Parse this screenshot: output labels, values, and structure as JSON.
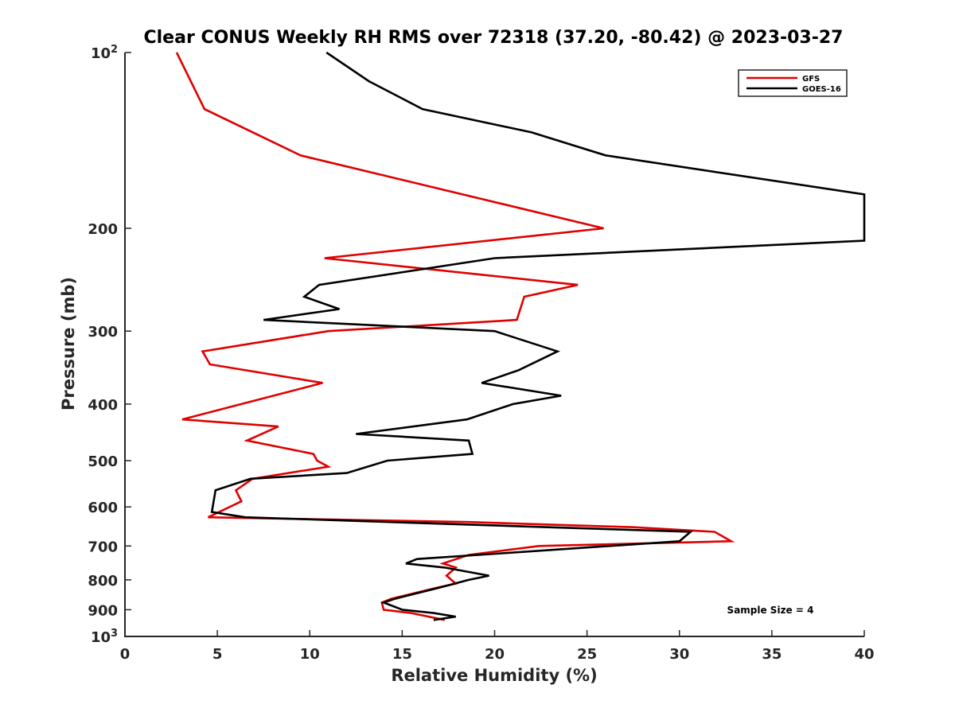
{
  "chart_data": {
    "type": "line",
    "title": "Clear CONUS Weekly RH RMS over 72318 (37.20, -80.42) @ 2023-03-27",
    "xlabel": "Relative Humidity (%)",
    "ylabel": "Pressure (mb)",
    "xlim": [
      0,
      40
    ],
    "ylim": [
      100,
      1000
    ],
    "y_scale": "log",
    "y_reversed": true,
    "grid": false,
    "legend_position": "top-right",
    "x_ticks": [
      "0",
      "5",
      "10",
      "15",
      "20",
      "25",
      "30",
      "35",
      "40"
    ],
    "y_ticks": [
      {
        "base": "10",
        "sup": "2",
        "text": "",
        "value": 100
      },
      {
        "base": "",
        "sup": "",
        "text": "200",
        "value": 200
      },
      {
        "base": "",
        "sup": "",
        "text": "300",
        "value": 300
      },
      {
        "base": "",
        "sup": "",
        "text": "400",
        "value": 400
      },
      {
        "base": "",
        "sup": "",
        "text": "500",
        "value": 500
      },
      {
        "base": "",
        "sup": "",
        "text": "600",
        "value": 600
      },
      {
        "base": "",
        "sup": "",
        "text": "700",
        "value": 700
      },
      {
        "base": "",
        "sup": "",
        "text": "800",
        "value": 800
      },
      {
        "base": "",
        "sup": "",
        "text": "900",
        "value": 900
      },
      {
        "base": "10",
        "sup": "3",
        "text": "",
        "value": 1000
      }
    ],
    "annotation": "Sample Size = 4",
    "series": [
      {
        "name": "GFS",
        "color": "#e00000",
        "points": [
          [
            2.8,
            100
          ],
          [
            4.3,
            125
          ],
          [
            9.5,
            150
          ],
          [
            25.9,
            200
          ],
          [
            10.8,
            225
          ],
          [
            24.5,
            250
          ],
          [
            21.6,
            262
          ],
          [
            21.2,
            287
          ],
          [
            11.0,
            300
          ],
          [
            4.2,
            325
          ],
          [
            4.6,
            342
          ],
          [
            10.7,
            368
          ],
          [
            3.1,
            425
          ],
          [
            8.3,
            437
          ],
          [
            6.6,
            462
          ],
          [
            10.2,
            487
          ],
          [
            10.4,
            500
          ],
          [
            11.0,
            512
          ],
          [
            6.9,
            537
          ],
          [
            6.0,
            562
          ],
          [
            6.3,
            587
          ],
          [
            4.5,
            625
          ],
          [
            18.6,
            637
          ],
          [
            27.5,
            650
          ],
          [
            31.9,
            662
          ],
          [
            32.8,
            687
          ],
          [
            22.4,
            700
          ],
          [
            18.6,
            725
          ],
          [
            17.2,
            750
          ],
          [
            17.9,
            762
          ],
          [
            17.4,
            787
          ],
          [
            17.9,
            812
          ],
          [
            16.9,
            825
          ],
          [
            14.4,
            862
          ],
          [
            13.9,
            875
          ],
          [
            14.0,
            900
          ],
          [
            15.5,
            912
          ],
          [
            17.3,
            937
          ]
        ]
      },
      {
        "name": "GOES-16",
        "color": "#000000",
        "points": [
          [
            10.9,
            100
          ],
          [
            13.2,
            112
          ],
          [
            16.1,
            125
          ],
          [
            22.0,
            137
          ],
          [
            26.0,
            150
          ],
          [
            40.0,
            175
          ],
          [
            40.0,
            210
          ],
          [
            20.0,
            225
          ],
          [
            10.5,
            250
          ],
          [
            9.7,
            262
          ],
          [
            11.6,
            275
          ],
          [
            7.5,
            287
          ],
          [
            20.0,
            300
          ],
          [
            23.4,
            325
          ],
          [
            21.3,
            350
          ],
          [
            19.3,
            368
          ],
          [
            23.6,
            387
          ],
          [
            21.0,
            400
          ],
          [
            18.5,
            425
          ],
          [
            12.5,
            450
          ],
          [
            18.6,
            462
          ],
          [
            18.8,
            487
          ],
          [
            14.2,
            500
          ],
          [
            12.0,
            525
          ],
          [
            6.8,
            537
          ],
          [
            4.9,
            562
          ],
          [
            4.7,
            612
          ],
          [
            6.5,
            625
          ],
          [
            22.9,
            650
          ],
          [
            30.6,
            662
          ],
          [
            30.0,
            687
          ],
          [
            22.8,
            712
          ],
          [
            15.8,
            737
          ],
          [
            15.2,
            750
          ],
          [
            17.3,
            762
          ],
          [
            19.7,
            787
          ],
          [
            18.6,
            800
          ],
          [
            17.0,
            825
          ],
          [
            14.6,
            862
          ],
          [
            14.0,
            875
          ],
          [
            15.0,
            900
          ],
          [
            16.7,
            912
          ],
          [
            17.9,
            925
          ],
          [
            16.7,
            937
          ]
        ]
      }
    ]
  }
}
